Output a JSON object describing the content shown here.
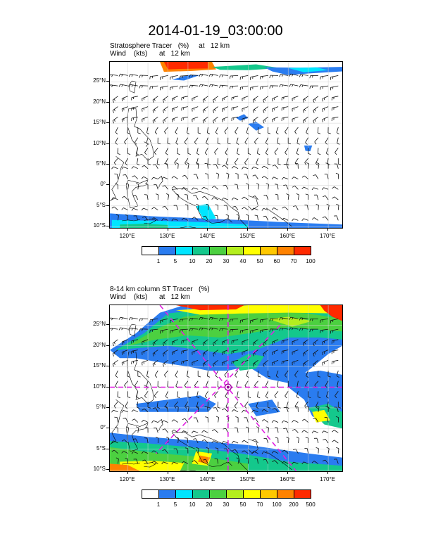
{
  "title": "2014-01-19_03:00:00",
  "panels": [
    {
      "id": "top",
      "subtitle_line1": "Stratosphere Tracer   (%)     at   12 km",
      "subtitle_line2": "Wind    (kts)      at   12 km",
      "lat_ticks": [
        "25°N",
        "20°N",
        "15°N",
        "10°N",
        "5°N",
        "0°",
        "5°S",
        "10°S"
      ],
      "lon_ticks": [
        "120°E",
        "130°E",
        "140°E",
        "150°E",
        "160°E",
        "170°E"
      ],
      "legend_labels": [
        "1",
        "5",
        "10",
        "20",
        "30",
        "40",
        "50",
        "60",
        "70",
        "100"
      ],
      "legend_colors": [
        "#ffffff",
        "#2a7cf0",
        "#00e5ff",
        "#14c88c",
        "#4cd040",
        "#b4ee1e",
        "#ffff00",
        "#ffc800",
        "#ff8200",
        "#ff2a00"
      ],
      "cross_section": false
    },
    {
      "id": "bottom",
      "subtitle_line1": "8-14 km column ST Tracer   (%)",
      "subtitle_line2": "Wind    (kts)      at   12 km",
      "lat_ticks": [
        "25°N",
        "20°N",
        "15°N",
        "10°N",
        "5°N",
        "0°",
        "5°S",
        "10°S"
      ],
      "lon_ticks": [
        "120°E",
        "130°E",
        "140°E",
        "150°E",
        "160°E",
        "170°E"
      ],
      "legend_labels": [
        "1",
        "5",
        "10",
        "20",
        "30",
        "50",
        "70",
        "100",
        "200",
        "500"
      ],
      "legend_colors": [
        "#ffffff",
        "#2a7cf0",
        "#00e5ff",
        "#14c88c",
        "#4cd040",
        "#b4ee1e",
        "#ffff00",
        "#ffc800",
        "#ff8200",
        "#ff2a00"
      ],
      "cross_section": true
    }
  ]
}
